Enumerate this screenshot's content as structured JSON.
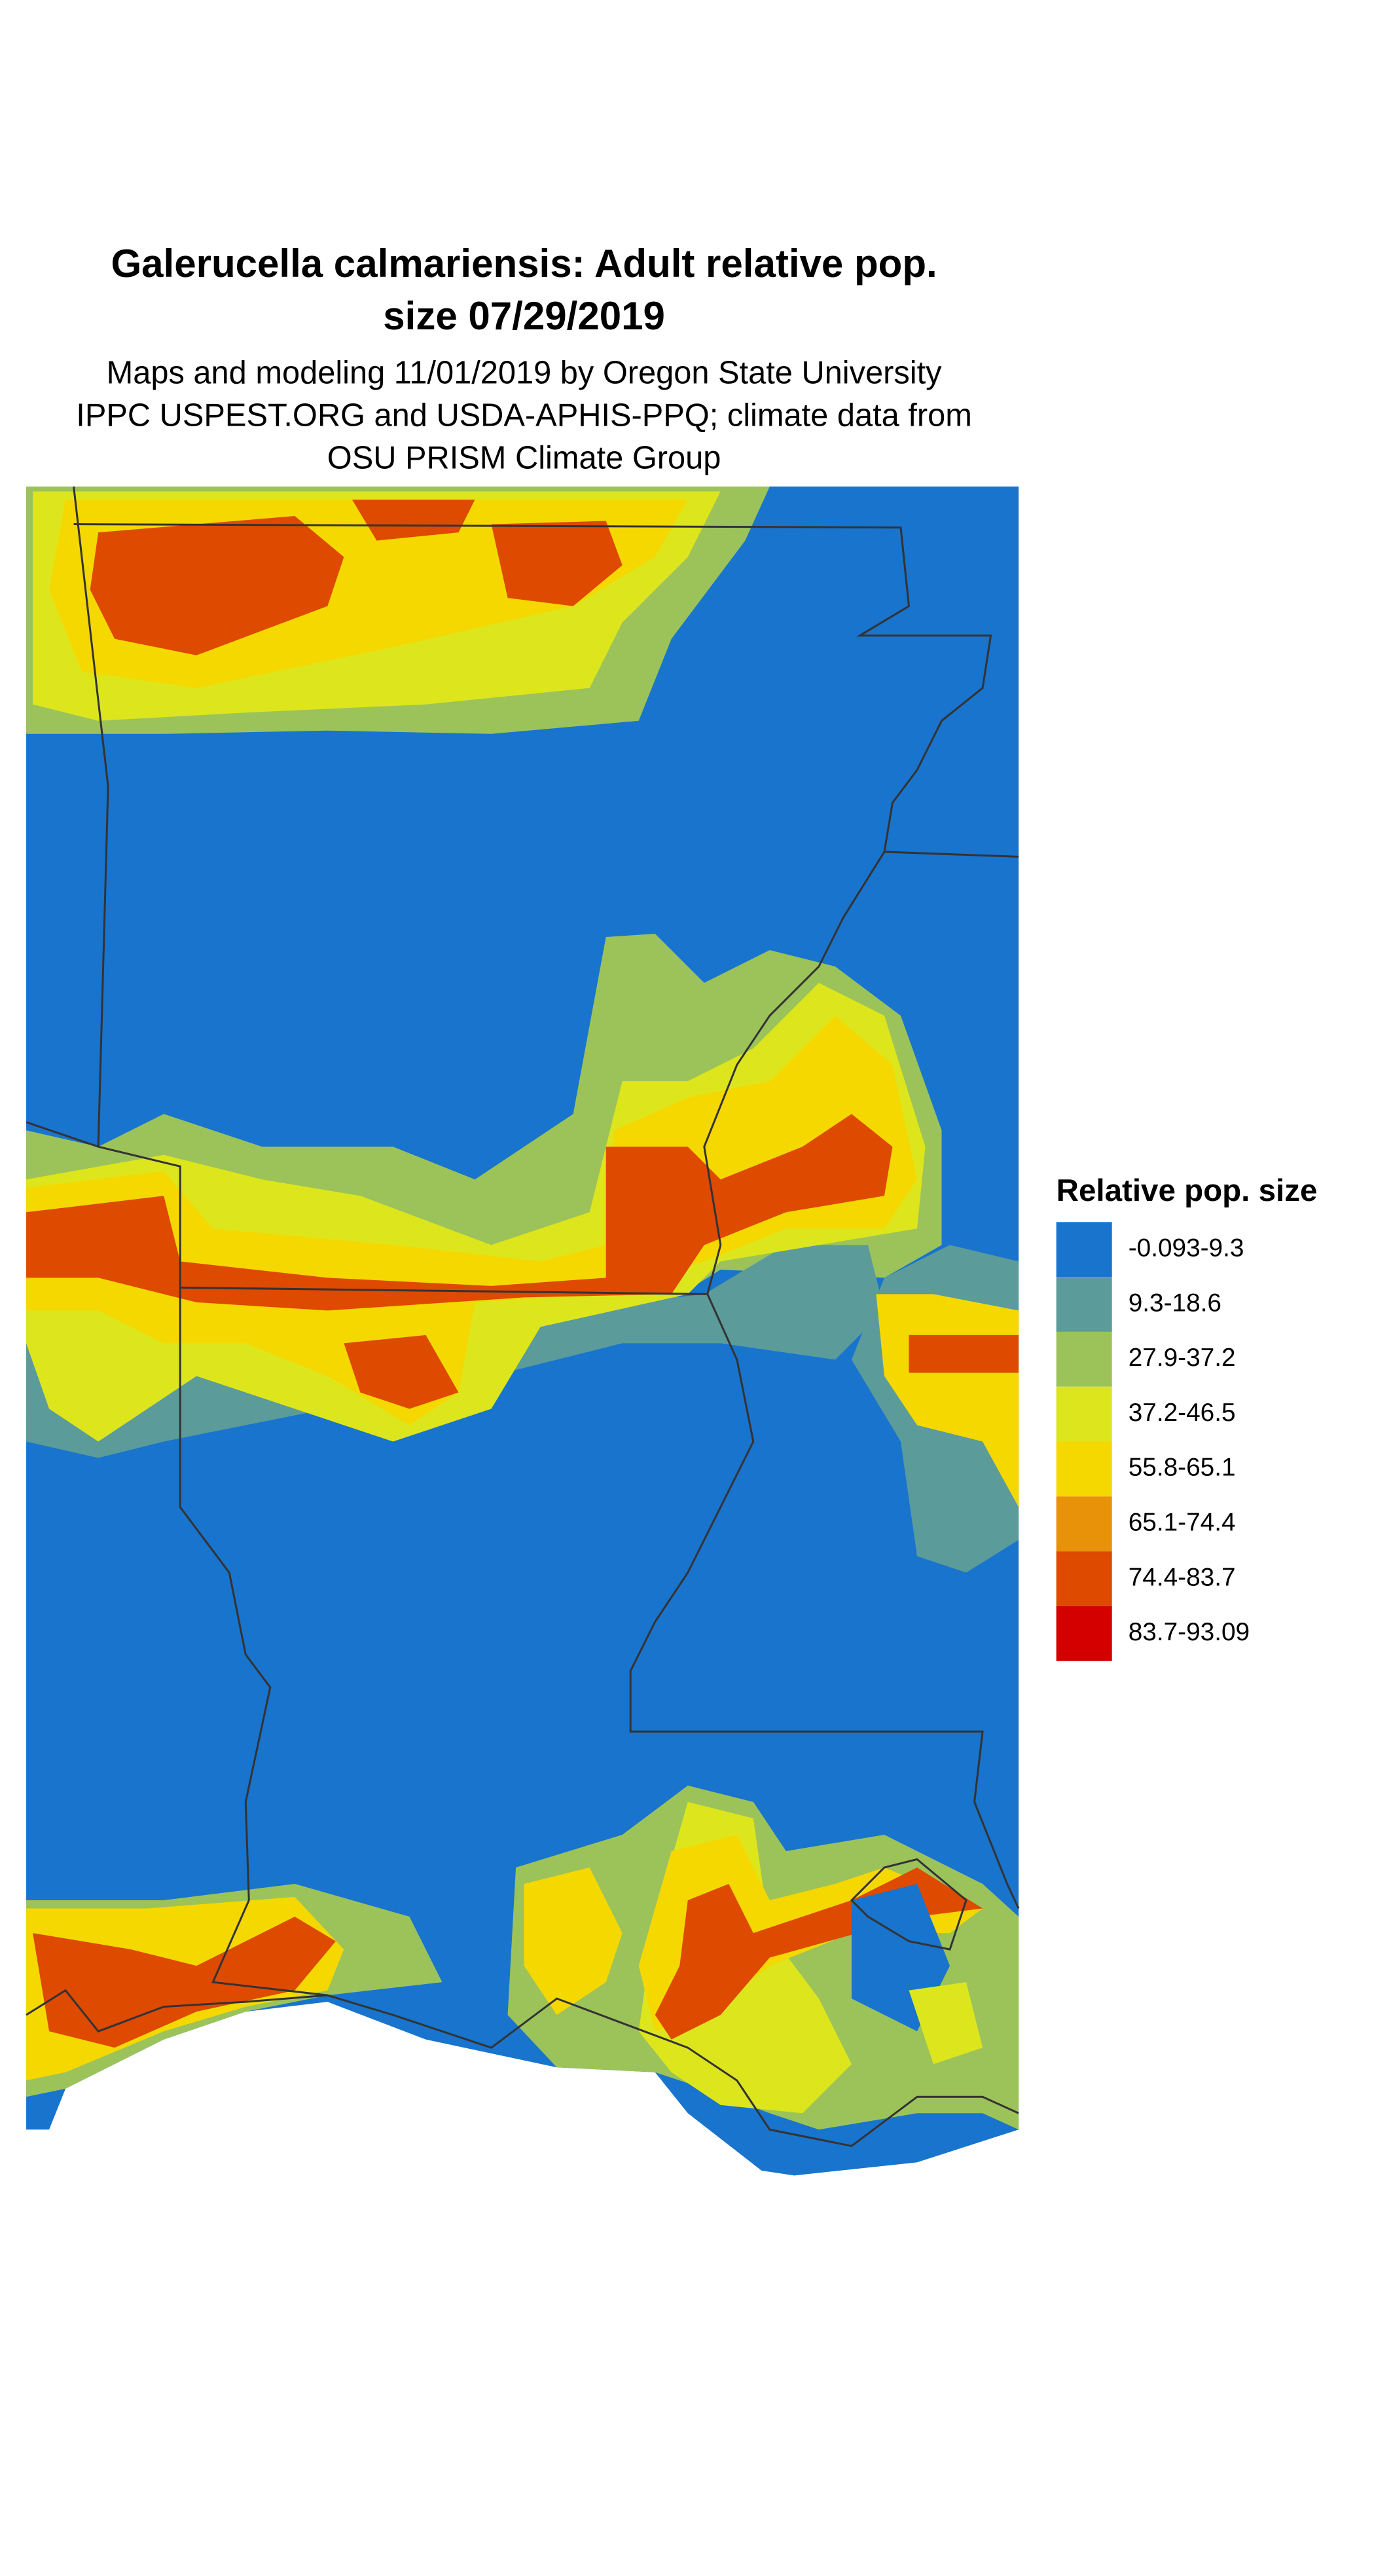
{
  "title_lines": [
    "Galerucella calmariensis: Adult relative pop.",
    "size 07/29/2019"
  ],
  "subtitle_lines": [
    "Maps and modeling 11/01/2019 by Oregon State University",
    "IPPC USPEST.ORG and USDA-APHIS-PPQ; climate data from",
    "OSU PRISM Climate Group"
  ],
  "legend": {
    "title": "Relative pop. size",
    "items": [
      {
        "label": "-0.093-9.3",
        "color": "#1874cd"
      },
      {
        "label": "9.3-18.6",
        "color": "#5b9b9a"
      },
      {
        "label": "27.9-37.2",
        "color": "#9cc35a"
      },
      {
        "label": "37.2-46.5",
        "color": "#dde61c"
      },
      {
        "label": "55.8-65.1",
        "color": "#f5d800"
      },
      {
        "label": "65.1-74.4",
        "color": "#e8920a"
      },
      {
        "label": "74.4-83.7",
        "color": "#dd4a00"
      },
      {
        "label": "83.7-93.09",
        "color": "#d40000"
      }
    ]
  }
}
